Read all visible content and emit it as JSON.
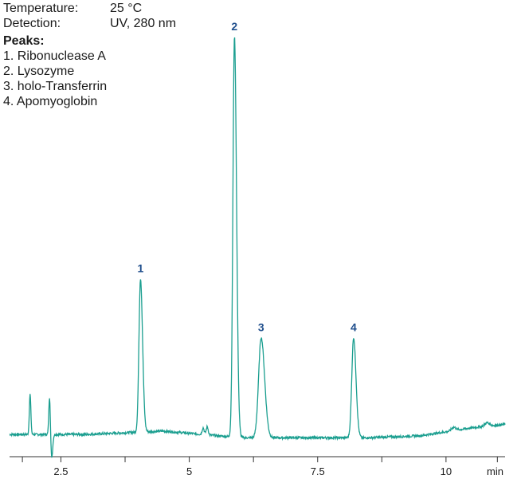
{
  "conditions": [
    {
      "label": "Temperature:",
      "value": "25 °C"
    },
    {
      "label": "Detection:",
      "value": "UV, 280 nm"
    }
  ],
  "peaks_title": "Peaks:",
  "peak_list": [
    "1. Ribonuclease A",
    "2. Lysozyme",
    "3. holo-Transferrin",
    "4. Apomyoglobin"
  ],
  "colors": {
    "trace": "#1a9e8f",
    "peak_label": "#1f4e8c",
    "axis": "#333333"
  },
  "chart_data": {
    "type": "line",
    "title": "",
    "xlabel": "min",
    "ylabel": "",
    "xlim": [
      1.5,
      11.15
    ],
    "ylim": [
      -0.25,
      6.15
    ],
    "x_ticks_major": [
      2.5,
      5,
      7.5,
      10
    ],
    "x_tick_labels": [
      "2.5",
      "5",
      "7.5",
      "10"
    ],
    "x_ticks_minor": [
      1.75,
      3.75,
      6.25,
      8.75,
      11.0
    ],
    "baseline": [
      [
        1.5,
        0.0
      ],
      [
        3.0,
        0.0
      ],
      [
        4.5,
        0.05
      ],
      [
        6.0,
        -0.05
      ],
      [
        7.5,
        -0.05
      ],
      [
        8.5,
        -0.05
      ],
      [
        9.5,
        -0.02
      ],
      [
        10.5,
        0.1
      ],
      [
        11.15,
        0.15
      ]
    ],
    "features": [
      {
        "x": 1.9,
        "height": 0.6,
        "width": 0.015
      },
      {
        "x": 2.28,
        "height": 0.6,
        "width": 0.015
      },
      {
        "x": 2.28,
        "height": -0.35,
        "width": 0.02,
        "offset": 0.04
      },
      {
        "x": 5.27,
        "height": 0.1,
        "width": 0.02
      },
      {
        "x": 5.35,
        "height": 0.12,
        "width": 0.02
      },
      {
        "x": 10.15,
        "height": 0.05,
        "width": 0.04
      },
      {
        "x": 10.8,
        "height": 0.05,
        "width": 0.05
      }
    ],
    "peaks": [
      {
        "label": "1",
        "name": "Ribonuclease A",
        "x": 4.05,
        "height": 2.3,
        "width": 0.03
      },
      {
        "label": "2",
        "name": "Lysozyme",
        "x": 5.88,
        "height": 6.0,
        "width": 0.03
      },
      {
        "label": "3",
        "name": "holo-Transferrin",
        "x": 6.4,
        "height": 1.5,
        "width": 0.05
      },
      {
        "label": "4",
        "name": "Apomyoglobin",
        "x": 8.2,
        "height": 1.5,
        "width": 0.035
      }
    ]
  }
}
